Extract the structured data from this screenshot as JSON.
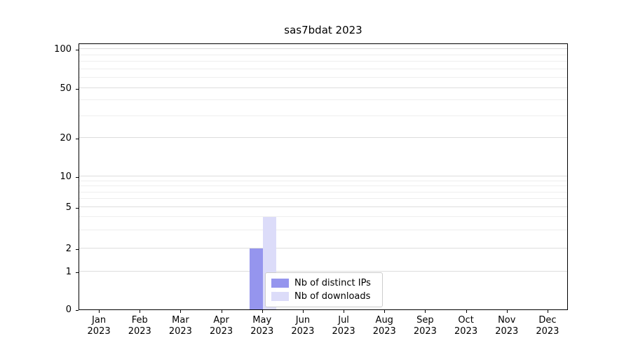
{
  "chart_data": {
    "type": "bar",
    "title": "sas7bdat 2023",
    "categories": [
      {
        "month": "Jan",
        "year": "2023"
      },
      {
        "month": "Feb",
        "year": "2023"
      },
      {
        "month": "Mar",
        "year": "2023"
      },
      {
        "month": "Apr",
        "year": "2023"
      },
      {
        "month": "May",
        "year": "2023"
      },
      {
        "month": "Jun",
        "year": "2023"
      },
      {
        "month": "Jul",
        "year": "2023"
      },
      {
        "month": "Aug",
        "year": "2023"
      },
      {
        "month": "Sep",
        "year": "2023"
      },
      {
        "month": "Oct",
        "year": "2023"
      },
      {
        "month": "Nov",
        "year": "2023"
      },
      {
        "month": "Dec",
        "year": "2023"
      }
    ],
    "series": [
      {
        "name": "Nb of distinct IPs",
        "color": "#9595ee",
        "values": [
          0,
          0,
          0,
          0,
          2,
          0,
          0,
          0,
          0,
          0,
          0,
          0
        ]
      },
      {
        "name": "Nb of downloads",
        "color": "#dcdcf9",
        "values": [
          0,
          0,
          0,
          0,
          4,
          0,
          0,
          0,
          0,
          0,
          0,
          0
        ]
      }
    ],
    "y_ticks": [
      0,
      1,
      2,
      5,
      10,
      20,
      50,
      100
    ],
    "y_minor_ticks": [
      3,
      4,
      6,
      7,
      8,
      9,
      30,
      40,
      60,
      70,
      80,
      90
    ],
    "yscale": "symlog",
    "ylim": [
      0,
      110
    ],
    "grid": true,
    "legend_position": "lower center"
  }
}
